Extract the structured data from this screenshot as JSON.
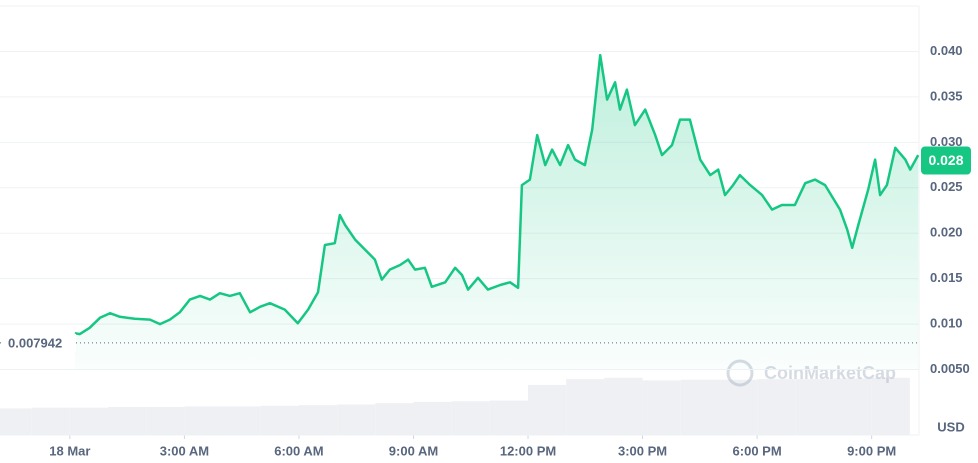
{
  "chart_data": {
    "type": "line",
    "series": [
      {
        "color": "#16c784",
        "x": [
          0.13,
          0.26,
          0.52,
          0.79,
          1.05,
          1.31,
          1.7,
          2.1,
          2.36,
          2.62,
          2.88,
          3.14,
          3.41,
          3.67,
          3.93,
          4.19,
          4.45,
          4.72,
          4.98,
          5.24,
          5.63,
          5.97,
          6.24,
          6.5,
          6.68,
          6.94,
          7.07,
          7.21,
          7.47,
          7.73,
          7.99,
          8.17,
          8.38,
          8.65,
          8.86,
          9.04,
          9.3,
          9.48,
          9.83,
          10.09,
          10.27,
          10.43,
          10.69,
          10.95,
          11.27,
          11.53,
          11.74,
          11.84,
          12.05,
          12.24,
          12.45,
          12.63,
          12.84,
          13.05,
          13.23,
          13.49,
          13.68,
          13.89,
          14.07,
          14.28,
          14.41,
          14.59,
          14.8,
          15.07,
          15.33,
          15.51,
          15.77,
          15.98,
          16.24,
          16.51,
          16.77,
          16.98,
          17.16,
          17.37,
          17.55,
          17.82,
          18.13,
          18.39,
          18.65,
          18.99,
          19.26,
          19.52,
          19.78,
          20.17,
          20.36,
          20.49,
          20.65,
          20.91,
          21.09,
          21.22,
          21.4,
          21.62,
          21.88,
          22.01,
          22.22
        ],
        "values": [
          0.009,
          0.0089,
          0.0096,
          0.0107,
          0.0112,
          0.0108,
          0.0106,
          0.0105,
          0.01,
          0.0105,
          0.0113,
          0.0127,
          0.0131,
          0.0127,
          0.0134,
          0.0131,
          0.0134,
          0.0113,
          0.0119,
          0.0123,
          0.0116,
          0.0101,
          0.0116,
          0.0135,
          0.0187,
          0.0189,
          0.022,
          0.0209,
          0.0193,
          0.0182,
          0.0171,
          0.0149,
          0.016,
          0.0165,
          0.0171,
          0.016,
          0.0162,
          0.0141,
          0.0146,
          0.0162,
          0.0154,
          0.0138,
          0.0151,
          0.0138,
          0.0143,
          0.0146,
          0.014,
          0.0253,
          0.0259,
          0.0308,
          0.0275,
          0.0292,
          0.0275,
          0.0297,
          0.0281,
          0.0275,
          0.0314,
          0.0396,
          0.0347,
          0.0366,
          0.0336,
          0.0358,
          0.0319,
          0.0336,
          0.0308,
          0.0286,
          0.0297,
          0.0325,
          0.0325,
          0.0281,
          0.0264,
          0.027,
          0.0242,
          0.0253,
          0.0264,
          0.0253,
          0.0242,
          0.0226,
          0.0231,
          0.0231,
          0.0255,
          0.0259,
          0.0253,
          0.0226,
          0.0204,
          0.0184,
          0.0209,
          0.0248,
          0.0281,
          0.0242,
          0.0253,
          0.0294,
          0.0281,
          0.027,
          0.0286
        ]
      }
    ],
    "xlim": [
      -1.83,
      22.24
    ],
    "xticks": [
      {
        "value": 0,
        "label": "18 Mar"
      },
      {
        "value": 3,
        "label": "3:00 AM"
      },
      {
        "value": 6,
        "label": "6:00 AM"
      },
      {
        "value": 9,
        "label": "9:00 AM"
      },
      {
        "value": 12,
        "label": "12:00 PM"
      },
      {
        "value": 15,
        "label": "3:00 PM"
      },
      {
        "value": 18,
        "label": "6:00 PM"
      },
      {
        "value": 21,
        "label": "9:00 PM"
      }
    ],
    "ylim": [
      -0.0022,
      0.045
    ],
    "yticks": [
      {
        "value": 0.005,
        "label": "0.0050"
      },
      {
        "value": 0.01,
        "label": "0.010"
      },
      {
        "value": 0.015,
        "label": "0.015"
      },
      {
        "value": 0.02,
        "label": "0.020"
      },
      {
        "value": 0.025,
        "label": "0.025"
      },
      {
        "value": 0.03,
        "label": "0.030"
      },
      {
        "value": 0.035,
        "label": "0.035"
      },
      {
        "value": 0.04,
        "label": "0.040"
      }
    ],
    "grid": true,
    "open_price": 0.007942,
    "current_price": 0.028,
    "volume": {
      "color": "#eef0f3",
      "vlim": [
        0,
        100
      ],
      "x": [
        -1.5,
        -0.5,
        0.5,
        1.5,
        2.5,
        3.5,
        4.5,
        5.5,
        6.5,
        7.5,
        8.5,
        9.5,
        10.5,
        11.5,
        12.5,
        13.5,
        14.5,
        15.5,
        16.5,
        17.5,
        18.5,
        19.5,
        20.5,
        21.5
      ],
      "values": [
        41,
        42,
        42,
        43,
        43,
        44,
        44,
        45,
        46,
        47,
        49,
        51,
        52,
        53,
        77,
        86,
        88,
        84,
        85,
        85,
        86,
        86,
        87,
        88
      ]
    },
    "watermark": "CoinMarketCap",
    "unit": "USD"
  }
}
